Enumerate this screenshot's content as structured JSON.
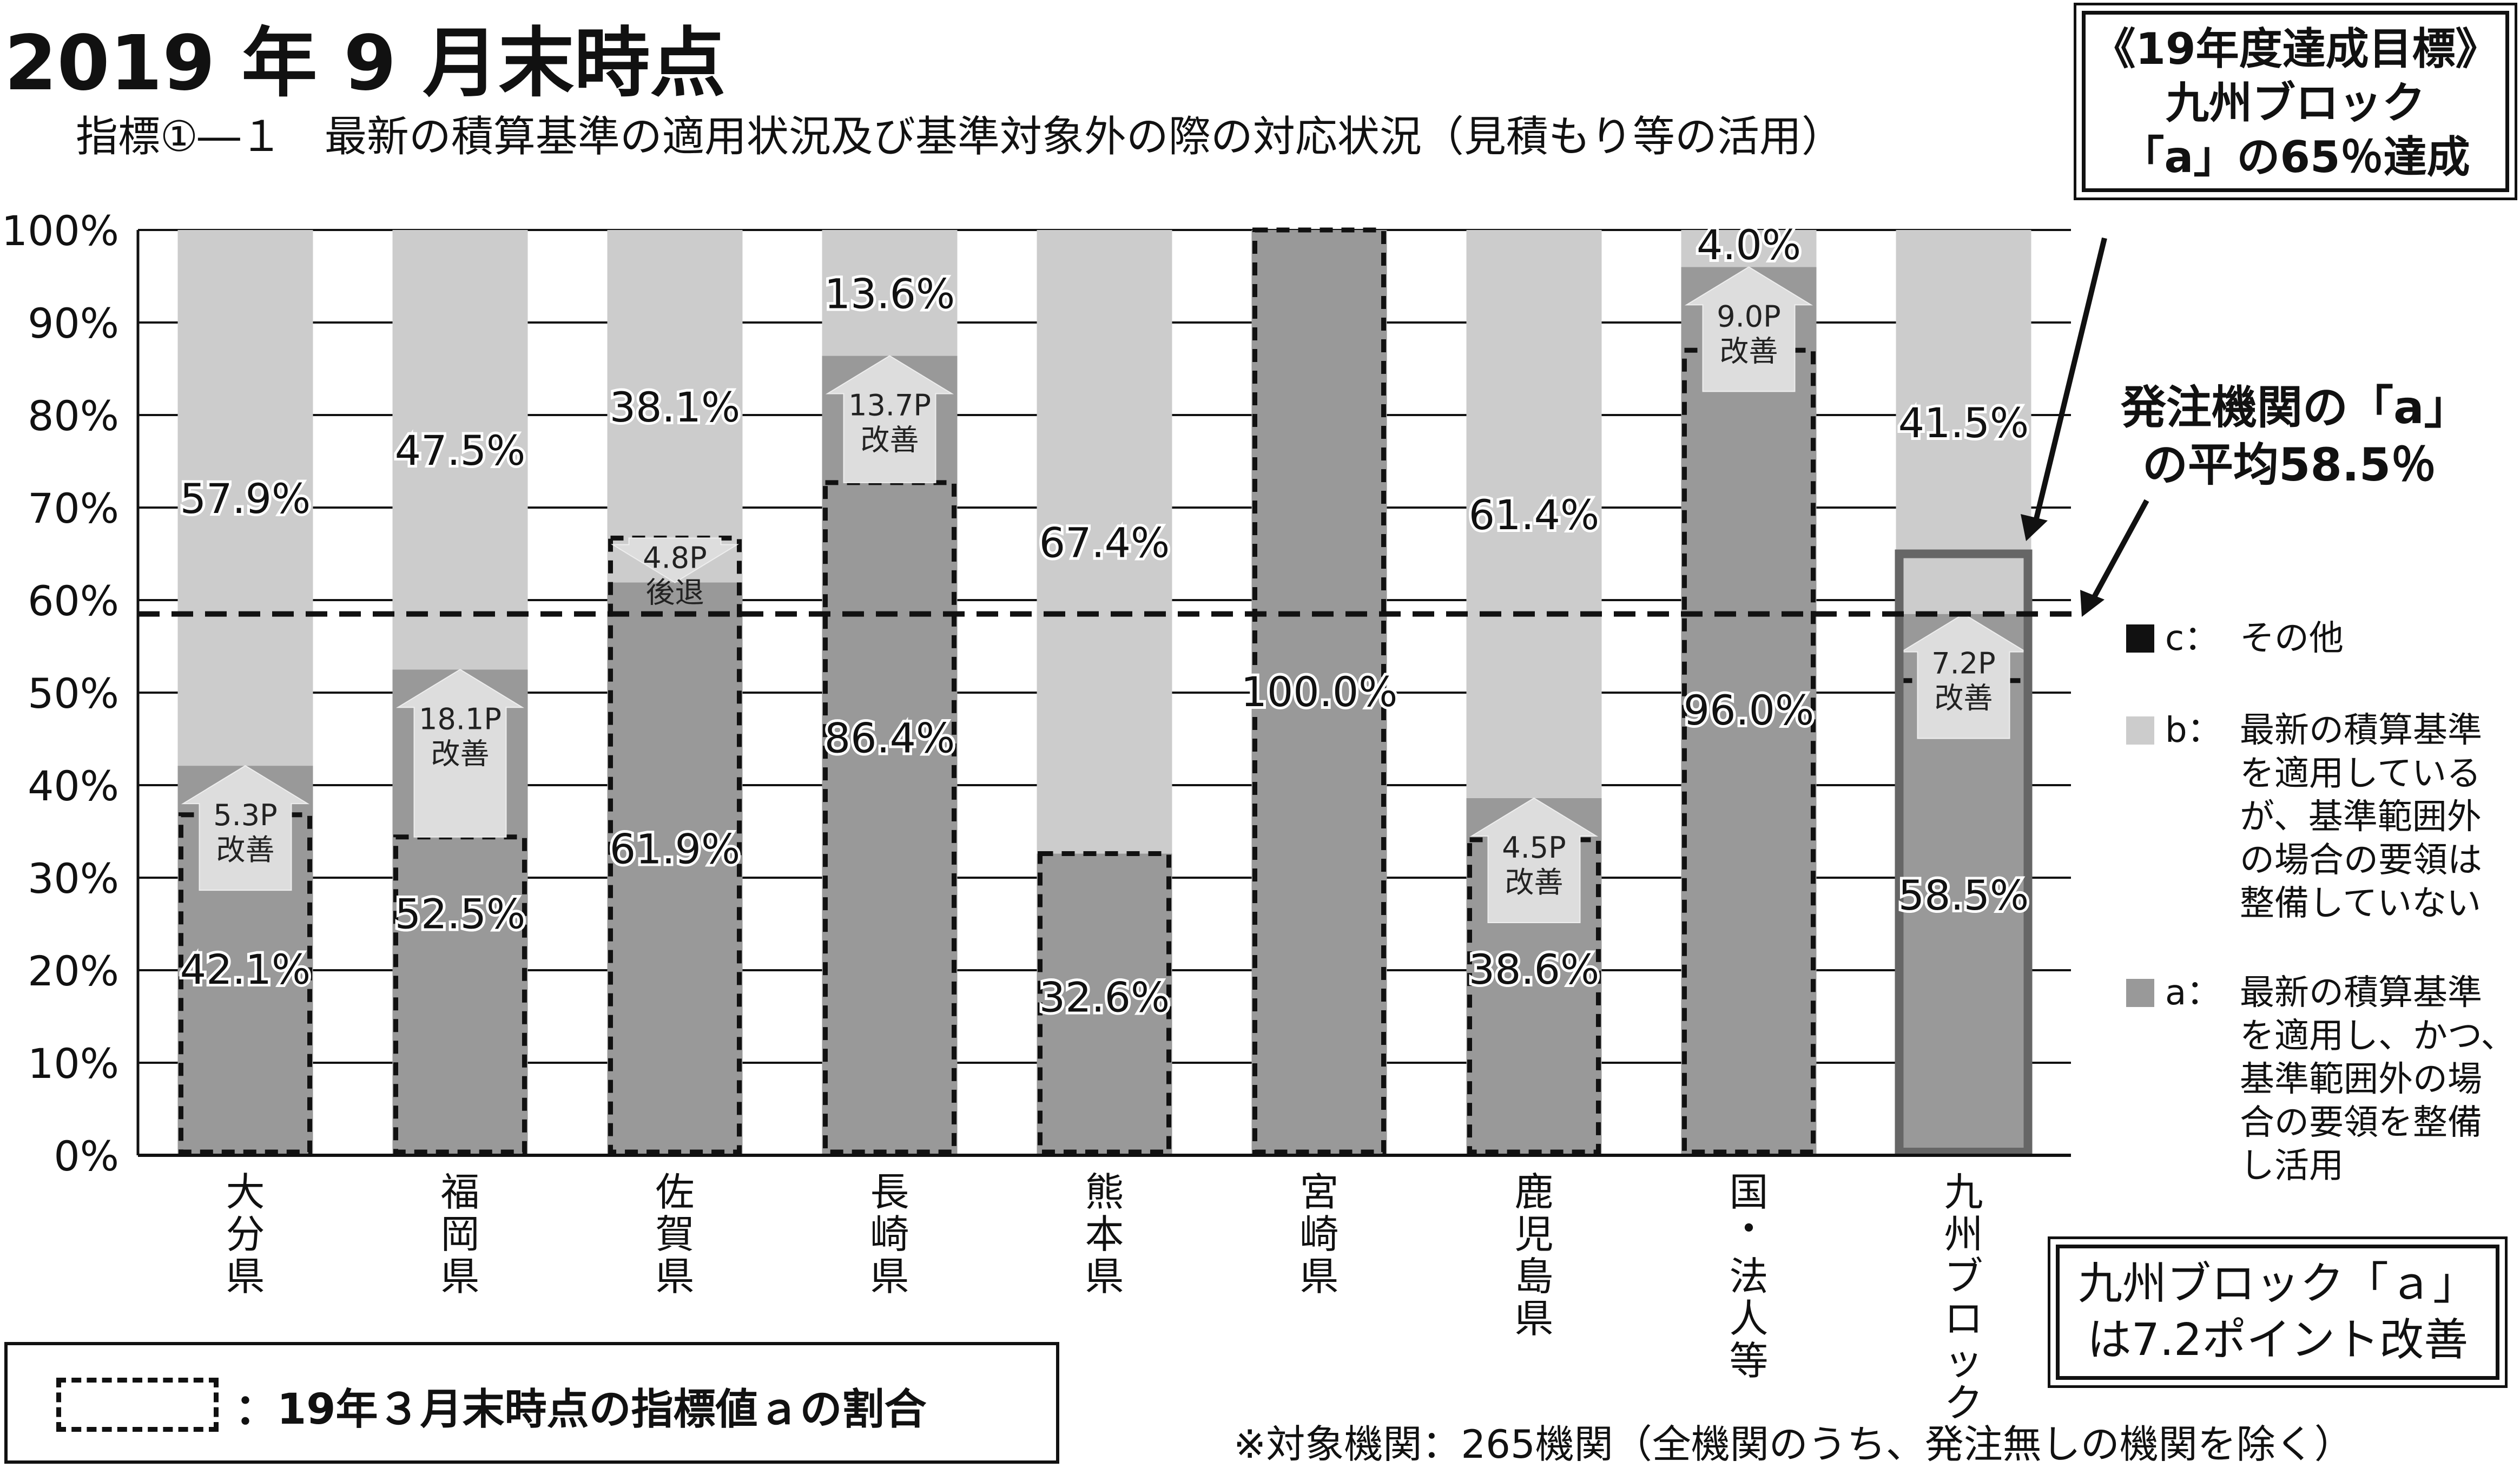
{
  "header": {
    "title": "2019 年 9 月末時点",
    "subtitle": "指標①―１　最新の積算基準の適用状況及び基準対象外の際の対応状況（見積もり等の活用）"
  },
  "target_box": {
    "line1": "《19年度達成目標》",
    "line2": "九州ブロック",
    "line3": "「a」の65％達成"
  },
  "average_note": {
    "line1": "発注機関の「a」",
    "line2": "の平均58.5％"
  },
  "improve_box": {
    "line1": "九州ブロック「ａ」",
    "line2": "は7.2ポイント改善"
  },
  "legend": [
    {
      "key": "c",
      "separator": "：",
      "text": "その他",
      "color": "#111111"
    },
    {
      "key": "b",
      "separator": "：",
      "text": "最新の積算基準を適用しているが、基準範囲外の場合の要領は整備していない",
      "color": "#cccccc"
    },
    {
      "key": "a",
      "separator": "：",
      "text": "最新の積算基準を適用し、かつ、基準範囲外の場合の要領を整備し活用",
      "color": "#999999"
    }
  ],
  "bottom_legend": {
    "text": "：19年３月末時点の指標値ａの割合"
  },
  "footnote": "※対象機関：265機関（全機関のうち、発注無しの機関を除く）",
  "colors": {
    "a": "#999999",
    "b": "#cccccc",
    "c": "#111111",
    "arrow": "#dddddd"
  },
  "chart_data": {
    "type": "bar",
    "stacked": true,
    "categories": [
      "大分県",
      "福岡県",
      "佐賀県",
      "長崎県",
      "熊本県",
      "宮崎県",
      "鹿児島県",
      "国・法人等",
      "九州ブロック"
    ],
    "series": [
      {
        "name": "a",
        "values": [
          42.1,
          52.5,
          61.9,
          86.4,
          32.6,
          100.0,
          38.6,
          96.0,
          58.5
        ]
      },
      {
        "name": "b",
        "values": [
          57.9,
          47.5,
          38.1,
          13.6,
          67.4,
          0,
          61.4,
          4.0,
          41.5
        ]
      },
      {
        "name": "c",
        "values": [
          0,
          0,
          0,
          0,
          0,
          0,
          0,
          0,
          0
        ]
      }
    ],
    "value_labels_a": [
      "42.1%",
      "52.5%",
      "61.9%",
      "86.4%",
      "32.6%",
      "100.0%",
      "38.6%",
      "96.0%",
      "58.5%"
    ],
    "value_labels_b": [
      "57.9%",
      "47.5%",
      "38.1%",
      "13.6%",
      "67.4%",
      "",
      "61.4%",
      "4.0%",
      "41.5%"
    ],
    "previous_a_march_2019": [
      36.8,
      34.4,
      66.7,
      72.7,
      32.6,
      100.0,
      34.1,
      87.0,
      51.3
    ],
    "change_labels": [
      {
        "value": "5.3P",
        "word": "改善"
      },
      {
        "value": "18.1P",
        "word": "改善"
      },
      {
        "value": "4.8P",
        "word": "後退"
      },
      {
        "value": "13.7P",
        "word": "改善"
      },
      null,
      null,
      {
        "value": "4.5P",
        "word": "改善"
      },
      {
        "value": "9.0P",
        "word": "改善"
      },
      {
        "value": "7.2P",
        "word": "改善"
      }
    ],
    "average_line": 58.5,
    "target_line": 65,
    "ylim": [
      0,
      100
    ],
    "yticks": [
      "0%",
      "10%",
      "20%",
      "30%",
      "40%",
      "50%",
      "60%",
      "70%",
      "80%",
      "90%",
      "100%"
    ],
    "grid": true,
    "legend_position": "right"
  }
}
